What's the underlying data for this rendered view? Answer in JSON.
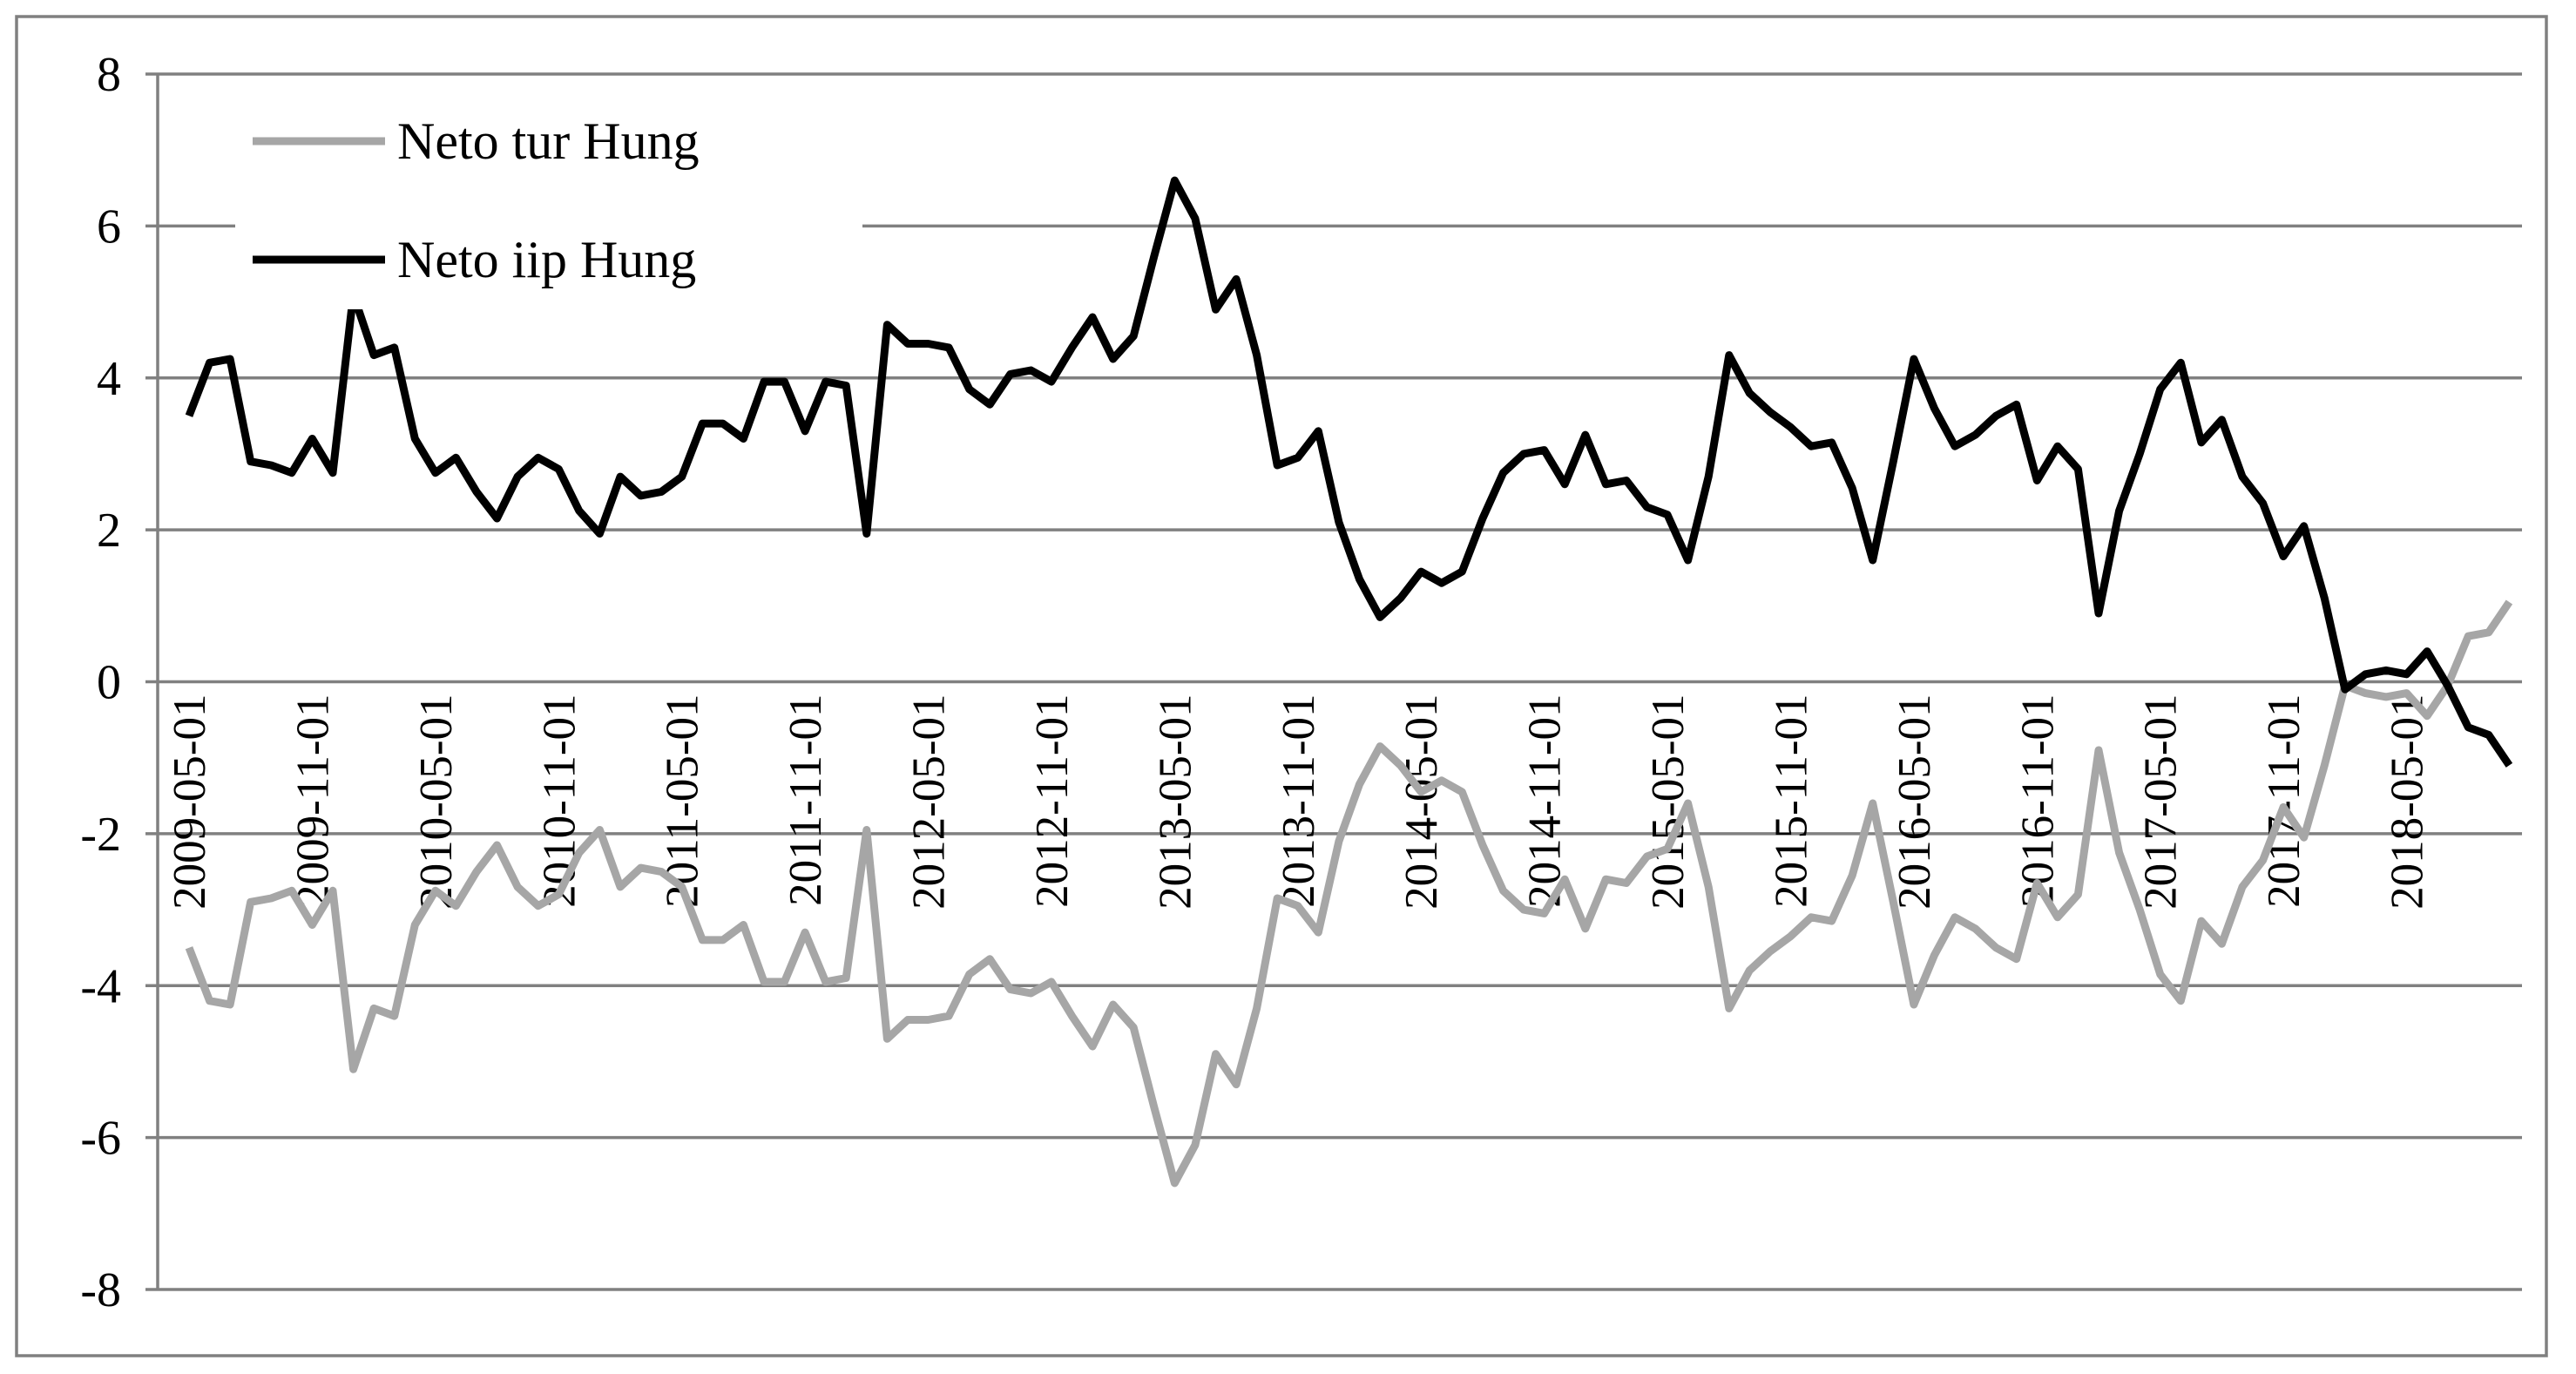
{
  "chart_data": {
    "type": "line",
    "categories": [
      "2009-05-01",
      null,
      null,
      null,
      null,
      null,
      "2009-11-01",
      null,
      null,
      null,
      null,
      null,
      "2010-05-01",
      null,
      null,
      null,
      null,
      null,
      "2010-11-01",
      null,
      null,
      null,
      null,
      null,
      "2011-05-01",
      null,
      null,
      null,
      null,
      null,
      "2011-11-01",
      null,
      null,
      null,
      null,
      null,
      "2012-05-01",
      null,
      null,
      null,
      null,
      null,
      "2012-11-01",
      null,
      null,
      null,
      null,
      null,
      "2013-05-01",
      null,
      null,
      null,
      null,
      null,
      "2013-11-01",
      null,
      null,
      null,
      null,
      null,
      "2014-05-01",
      null,
      null,
      null,
      null,
      null,
      "2014-11-01",
      null,
      null,
      null,
      null,
      null,
      "2015-05-01",
      null,
      null,
      null,
      null,
      null,
      "2015-11-01",
      null,
      null,
      null,
      null,
      null,
      "2016-05-01",
      null,
      null,
      null,
      null,
      null,
      "2016-11-01",
      null,
      null,
      null,
      null,
      null,
      "2017-05-01",
      null,
      null,
      null,
      null,
      null,
      "2017-11-01",
      null,
      null,
      null,
      null,
      null,
      "2018-05-01",
      null,
      null,
      null,
      null,
      null
    ],
    "series": [
      {
        "name": "Neto tur Hung",
        "color": "#a6a6a6",
        "values": [
          -3.5,
          -4.2,
          -4.25,
          -2.9,
          -2.85,
          -2.75,
          -3.2,
          -2.75,
          -5.1,
          -4.3,
          -4.4,
          -3.2,
          -2.75,
          -2.95,
          -2.5,
          -2.15,
          -2.7,
          -2.95,
          -2.8,
          -2.25,
          -1.95,
          -2.7,
          -2.45,
          -2.5,
          -2.7,
          -3.4,
          -3.4,
          -3.2,
          -3.95,
          -3.95,
          -3.3,
          -3.95,
          -3.9,
          -1.95,
          -4.7,
          -4.45,
          -4.45,
          -4.4,
          -3.85,
          -3.65,
          -4.05,
          -4.1,
          -3.95,
          -4.4,
          -4.8,
          -4.25,
          -4.55,
          -5.6,
          -6.6,
          -6.1,
          -4.9,
          -5.3,
          -4.3,
          -2.85,
          -2.95,
          -3.3,
          -2.1,
          -1.35,
          -0.85,
          -1.1,
          -1.45,
          -1.3,
          -1.45,
          -2.15,
          -2.75,
          -3.0,
          -3.05,
          -2.6,
          -3.25,
          -2.6,
          -2.65,
          -2.3,
          -2.2,
          -1.6,
          -2.7,
          -4.3,
          -3.8,
          -3.55,
          -3.35,
          -3.1,
          -3.15,
          -2.55,
          -1.6,
          -2.9,
          -4.25,
          -3.6,
          -3.1,
          -3.25,
          -3.5,
          -3.65,
          -2.65,
          -3.1,
          -2.8,
          -0.9,
          -2.25,
          -3.0,
          -3.85,
          -4.2,
          -3.15,
          -3.45,
          -2.7,
          -2.35,
          -1.65,
          -2.05,
          -1.1,
          -0.05,
          -0.15,
          -0.2,
          -0.15,
          -0.45,
          -0.05,
          0.6,
          0.65,
          1.05
        ]
      },
      {
        "name": "Neto iip Hung",
        "color": "#000000",
        "values": [
          3.5,
          4.2,
          4.25,
          2.9,
          2.85,
          2.75,
          3.2,
          2.75,
          5.1,
          4.3,
          4.4,
          3.2,
          2.75,
          2.95,
          2.5,
          2.15,
          2.7,
          2.95,
          2.8,
          2.25,
          1.95,
          2.7,
          2.45,
          2.5,
          2.7,
          3.4,
          3.4,
          3.2,
          3.95,
          3.95,
          3.3,
          3.95,
          3.9,
          1.95,
          4.7,
          4.45,
          4.45,
          4.4,
          3.85,
          3.65,
          4.05,
          4.1,
          3.95,
          4.4,
          4.8,
          4.25,
          4.55,
          5.6,
          6.6,
          6.1,
          4.9,
          5.3,
          4.3,
          2.85,
          2.95,
          3.3,
          2.1,
          1.35,
          0.85,
          1.1,
          1.45,
          1.3,
          1.45,
          2.15,
          2.75,
          3.0,
          3.05,
          2.6,
          3.25,
          2.6,
          2.65,
          2.3,
          2.2,
          1.6,
          2.7,
          4.3,
          3.8,
          3.55,
          3.35,
          3.1,
          3.15,
          2.55,
          1.6,
          2.9,
          4.25,
          3.6,
          3.1,
          3.25,
          3.5,
          3.65,
          2.65,
          3.1,
          2.8,
          0.9,
          2.25,
          3.0,
          3.85,
          4.2,
          3.15,
          3.45,
          2.7,
          2.35,
          1.65,
          2.05,
          1.1,
          -0.1,
          0.1,
          0.15,
          0.1,
          0.4,
          -0.05,
          -0.6,
          -0.7,
          -1.1
        ]
      }
    ],
    "ylim": [
      -8,
      8
    ],
    "yticks": [
      -8,
      -6,
      -4,
      -2,
      0,
      2,
      4,
      6,
      8
    ],
    "grid": true,
    "legend": "upper-left"
  }
}
